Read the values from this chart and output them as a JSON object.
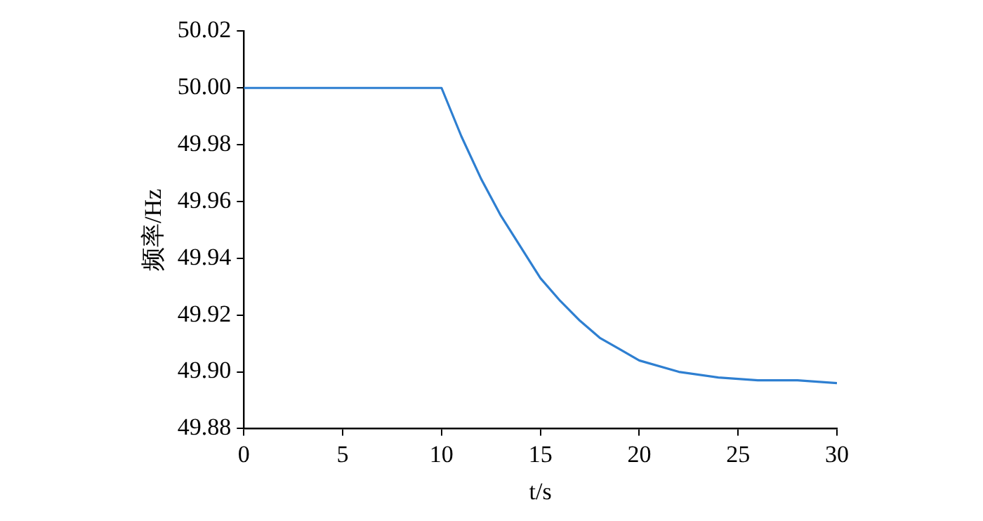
{
  "chart_data": {
    "type": "line",
    "xlabel": "t/s",
    "ylabel": "频率/Hz",
    "series": [
      {
        "color": "#2e7fd1",
        "x": [
          0,
          5,
          10,
          11,
          12,
          13,
          14,
          15,
          16,
          17,
          18,
          19,
          20,
          22,
          24,
          26,
          28,
          30
        ],
        "values": [
          50.0,
          50.0,
          50.0,
          49.983,
          49.968,
          49.955,
          49.944,
          49.933,
          49.925,
          49.918,
          49.912,
          49.908,
          49.904,
          49.9,
          49.898,
          49.897,
          49.897,
          49.896
        ]
      }
    ],
    "xlim": [
      0,
      30
    ],
    "xticks": [
      0,
      5,
      10,
      15,
      20,
      25,
      30
    ],
    "ylim": [
      49.88,
      50.02
    ],
    "yticks": [
      49.88,
      {
        "value": 49.9,
        "label": "49.90"
      },
      49.92,
      49.94,
      49.96,
      49.98,
      {
        "value": 50,
        "label": "50.00"
      },
      50.02
    ],
    "grid": false,
    "legend": false,
    "marker": "none",
    "line_style": "solid"
  }
}
